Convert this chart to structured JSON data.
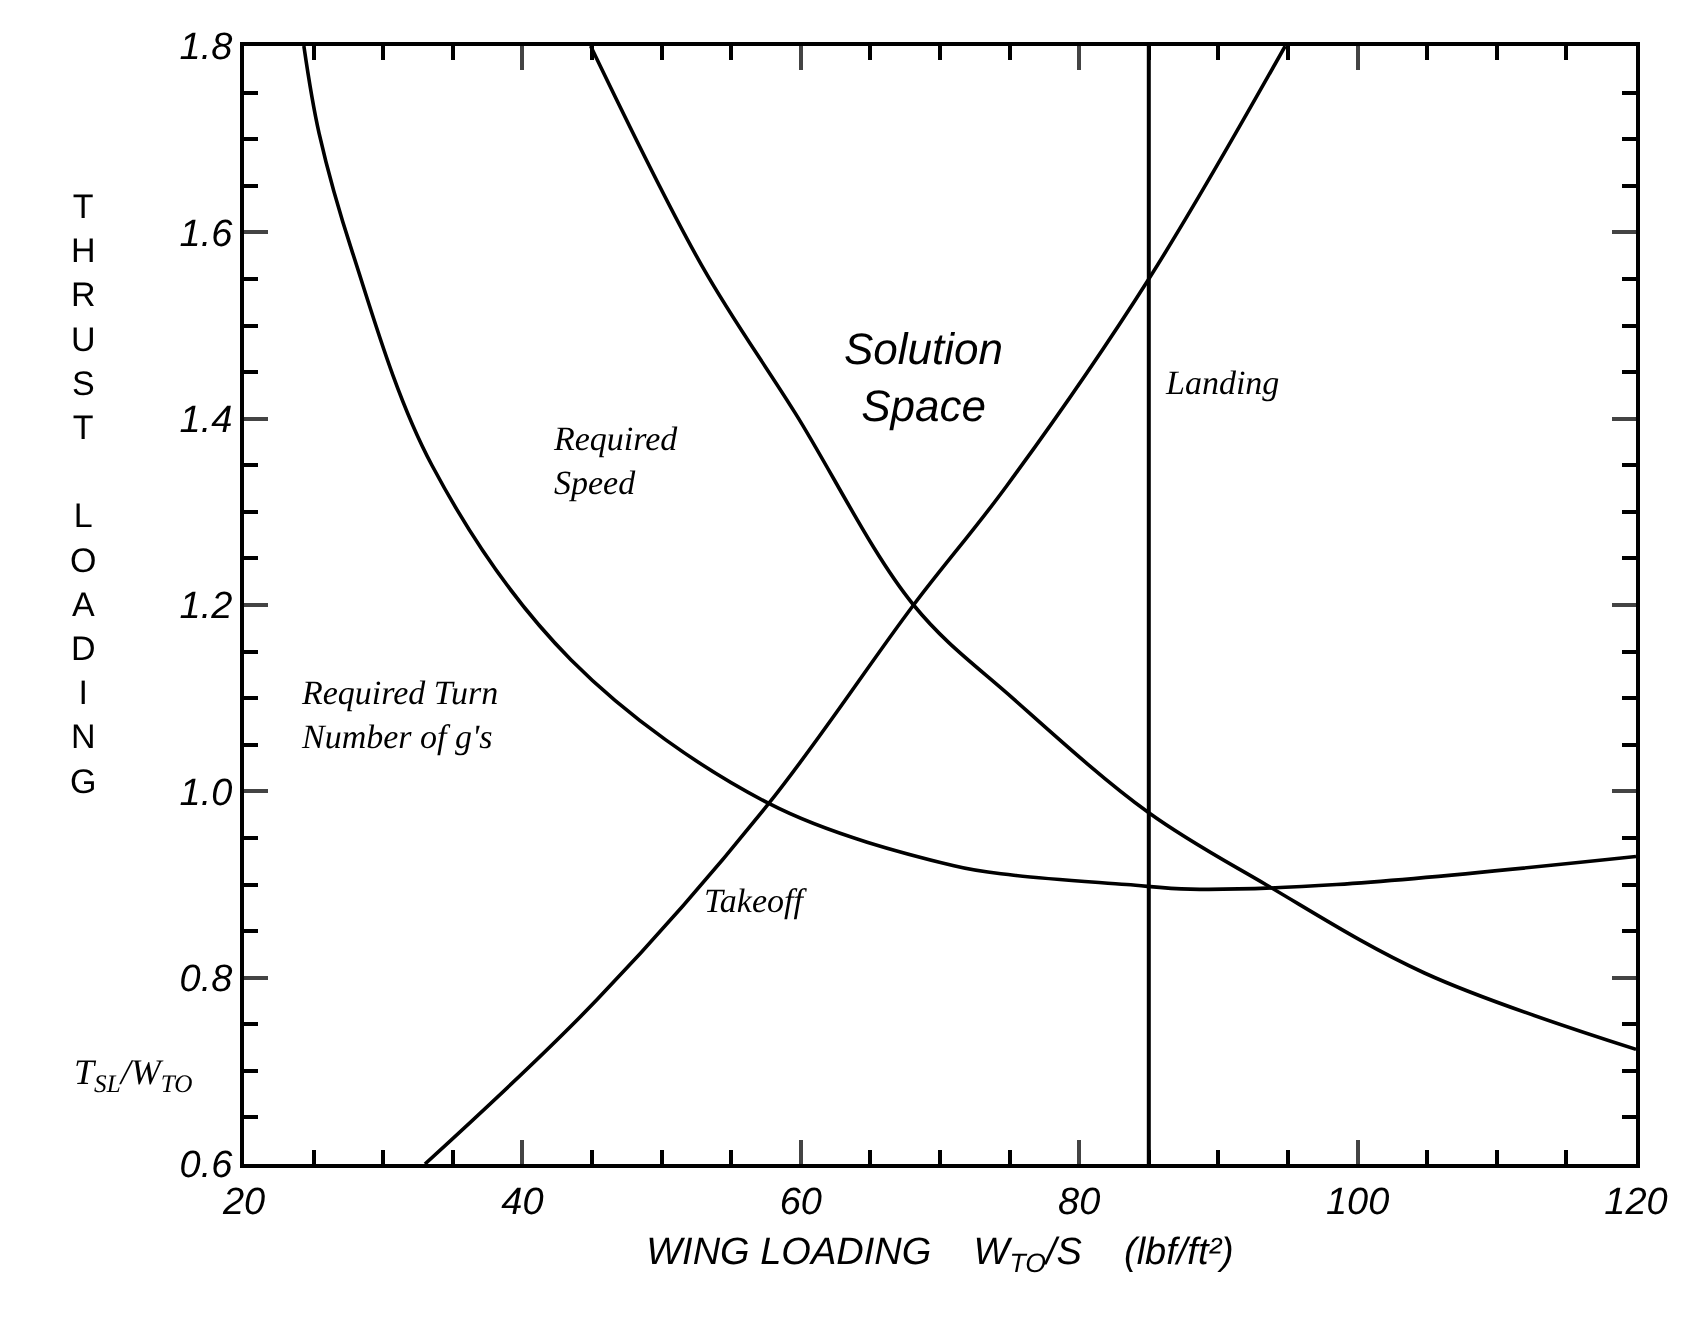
{
  "chart_data": {
    "type": "line",
    "xlabel": "WING LOADING    W$_{TO}$/S    (lbf/ft²)",
    "ylabel": "THRUST LOADING",
    "xlim": [
      20,
      120
    ],
    "ylim": [
      0.6,
      1.8
    ],
    "xticks": [
      20,
      {
        "value": 25,
        "label": null
      },
      {
        "value": 30,
        "label": null
      },
      {
        "value": 35,
        "label": null
      },
      40,
      {
        "value": 45,
        "label": null
      },
      {
        "value": 50,
        "label": null
      },
      {
        "value": 55,
        "label": null
      },
      60,
      {
        "value": 65,
        "label": null
      },
      {
        "value": 70,
        "label": null
      },
      {
        "value": 75,
        "label": null
      },
      80,
      {
        "value": 85,
        "label": null
      },
      {
        "value": 90,
        "label": null
      },
      {
        "value": 95,
        "label": null
      },
      100,
      {
        "value": 105,
        "label": null
      },
      {
        "value": 110,
        "label": null
      },
      {
        "value": 115,
        "label": null
      },
      120
    ],
    "yticks": [
      0.6,
      {
        "value": 0.65,
        "label": null
      },
      {
        "value": 0.7,
        "label": null
      },
      {
        "value": 0.75,
        "label": null
      },
      0.8,
      {
        "value": 0.85,
        "label": null
      },
      {
        "value": 0.9,
        "label": null
      },
      {
        "value": 0.95,
        "label": null
      },
      {
        "value": 1.0,
        "label": "1.0"
      },
      {
        "value": 1.05,
        "label": null
      },
      {
        "value": 1.1,
        "label": null
      },
      {
        "value": 1.15,
        "label": null
      },
      1.2,
      {
        "value": 1.25,
        "label": null
      },
      {
        "value": 1.3,
        "label": null
      },
      {
        "value": 1.35,
        "label": null
      },
      1.4,
      {
        "value": 1.45,
        "label": null
      },
      {
        "value": 1.5,
        "label": null
      },
      {
        "value": 1.55,
        "label": null
      },
      1.6,
      {
        "value": 1.65,
        "label": null
      },
      {
        "value": 1.7,
        "label": null
      },
      {
        "value": 1.75,
        "label": null
      },
      1.8
    ],
    "marker": "none",
    "line_style": "solid",
    "series": [
      {
        "color": "#000000",
        "x": [
          24.3,
          25.4,
          27.8,
          33.5,
          43.5,
          57.7,
          71,
          75.3,
          83.4,
          88,
          98.5,
          120
        ],
        "values": [
          1.8,
          1.706,
          1.578,
          1.35,
          1.141,
          0.987,
          0.92,
          0.91,
          0.9,
          0.895,
          0.9,
          0.93
        ]
      },
      {
        "color": "#000000",
        "x": [
          44.9,
          52.9,
          59.6,
          68.1,
          75.3,
          85,
          93.4,
          104.8,
          120
        ],
        "values": [
          1.8,
          1.564,
          1.406,
          1.2,
          1.099,
          0.977,
          0.9,
          0.805,
          0.723
        ]
      },
      {
        "color": "#000000",
        "x": [
          33,
          45.4,
          57.7,
          68.1,
          74.8,
          85,
          94.8
        ],
        "values": [
          0.6,
          0.777,
          0.987,
          1.2,
          1.328,
          1.55,
          1.8
        ]
      }
    ],
    "ref_lines": [
      {
        "axis": "x",
        "value": 85,
        "label": "Landing",
        "color": "#000000",
        "line_style": "solid"
      }
    ],
    "annotations": [
      "Solution\nSpace",
      "Required\nSpeed",
      "Required Turn\nNumber of g's",
      "Takeoff",
      "T$_{SL}$/W$_{TO}$"
    ]
  }
}
